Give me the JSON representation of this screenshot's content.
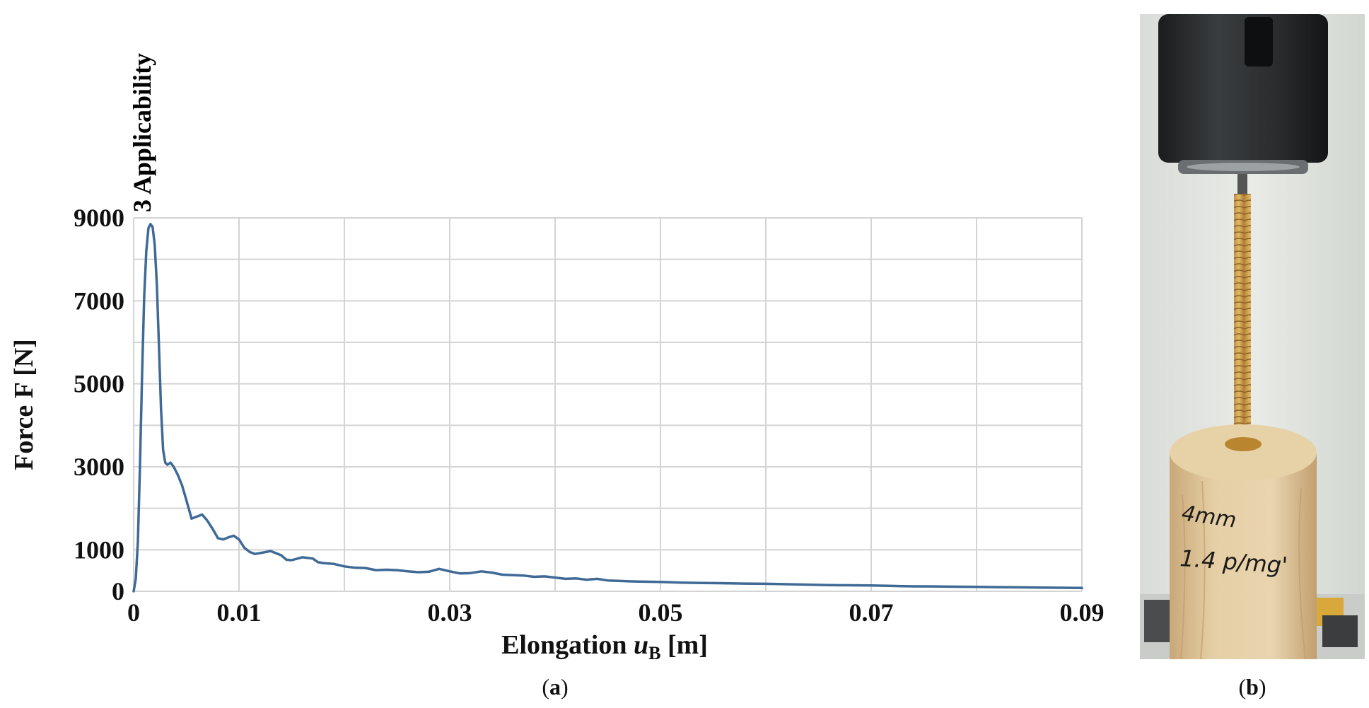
{
  "chart_data": {
    "type": "line",
    "clipped_header": "3 Applicability",
    "ylabel": "Force F [N]",
    "xlabel_prefix": "Elongation ",
    "xlabel_var": "u",
    "xlabel_sub": "B",
    "xlabel_unit": " [m]",
    "x_ticks": [
      "0",
      "0.01",
      "0.03",
      "0.05",
      "0.07",
      "0.09"
    ],
    "x_tick_values": [
      0,
      0.01,
      0.03,
      0.05,
      0.07,
      0.09
    ],
    "y_ticks": [
      "0",
      "1000",
      "3000",
      "5000",
      "7000",
      "9000"
    ],
    "y_tick_values": [
      0,
      1000,
      3000,
      5000,
      7000,
      9000
    ],
    "xlim": [
      0,
      0.09
    ],
    "ylim": [
      0,
      9000
    ],
    "grid": true,
    "line_color": "#3f6a96",
    "series": [
      {
        "x": [
          0,
          0.0002,
          0.0004,
          0.0006,
          0.0008,
          0.001,
          0.0012,
          0.0014,
          0.0016,
          0.0018,
          0.002,
          0.0022,
          0.0024,
          0.0026,
          0.0028,
          0.003,
          0.0032,
          0.0035,
          0.0038,
          0.0042,
          0.0046,
          0.005,
          0.0055,
          0.006,
          0.0065,
          0.007,
          0.0075,
          0.008,
          0.0085,
          0.009,
          0.0095,
          0.01,
          0.0105,
          0.011,
          0.0115,
          0.012,
          0.013,
          0.014,
          0.0145,
          0.015,
          0.016,
          0.017,
          0.0175,
          0.018,
          0.019,
          0.02,
          0.021,
          0.022,
          0.023,
          0.024,
          0.025,
          0.026,
          0.027,
          0.028,
          0.029,
          0.03,
          0.031,
          0.032,
          0.033,
          0.034,
          0.035,
          0.036,
          0.037,
          0.038,
          0.039,
          0.04,
          0.041,
          0.042,
          0.043,
          0.044,
          0.045,
          0.046,
          0.047,
          0.048,
          0.05,
          0.052,
          0.054,
          0.056,
          0.058,
          0.06,
          0.062,
          0.064,
          0.066,
          0.068,
          0.07,
          0.072,
          0.074,
          0.076,
          0.078,
          0.08,
          0.082,
          0.084,
          0.086,
          0.088,
          0.09
        ],
        "y": [
          0,
          300,
          1200,
          3000,
          5200,
          7100,
          8200,
          8750,
          8850,
          8780,
          8350,
          7400,
          5900,
          4400,
          3400,
          3100,
          3050,
          3100,
          3000,
          2800,
          2550,
          2200,
          1750,
          1800,
          1850,
          1700,
          1500,
          1280,
          1250,
          1300,
          1340,
          1250,
          1050,
          950,
          900,
          920,
          970,
          870,
          760,
          750,
          820,
          790,
          700,
          680,
          660,
          600,
          570,
          560,
          510,
          520,
          510,
          480,
          460,
          470,
          540,
          480,
          430,
          440,
          480,
          450,
          400,
          390,
          380,
          350,
          360,
          330,
          300,
          310,
          280,
          300,
          260,
          250,
          240,
          235,
          225,
          210,
          200,
          195,
          185,
          180,
          170,
          160,
          150,
          145,
          140,
          130,
          120,
          118,
          110,
          105,
          100,
          95,
          90,
          85,
          80
        ]
      }
    ]
  },
  "captions": {
    "left_open": "(",
    "left_letter": "a",
    "left_close": ")",
    "right_open": "(",
    "right_letter": "b",
    "right_close": ")"
  },
  "photo": {
    "handwriting_line1": "4mm",
    "handwriting_line2": "1.4 p/mg'"
  }
}
